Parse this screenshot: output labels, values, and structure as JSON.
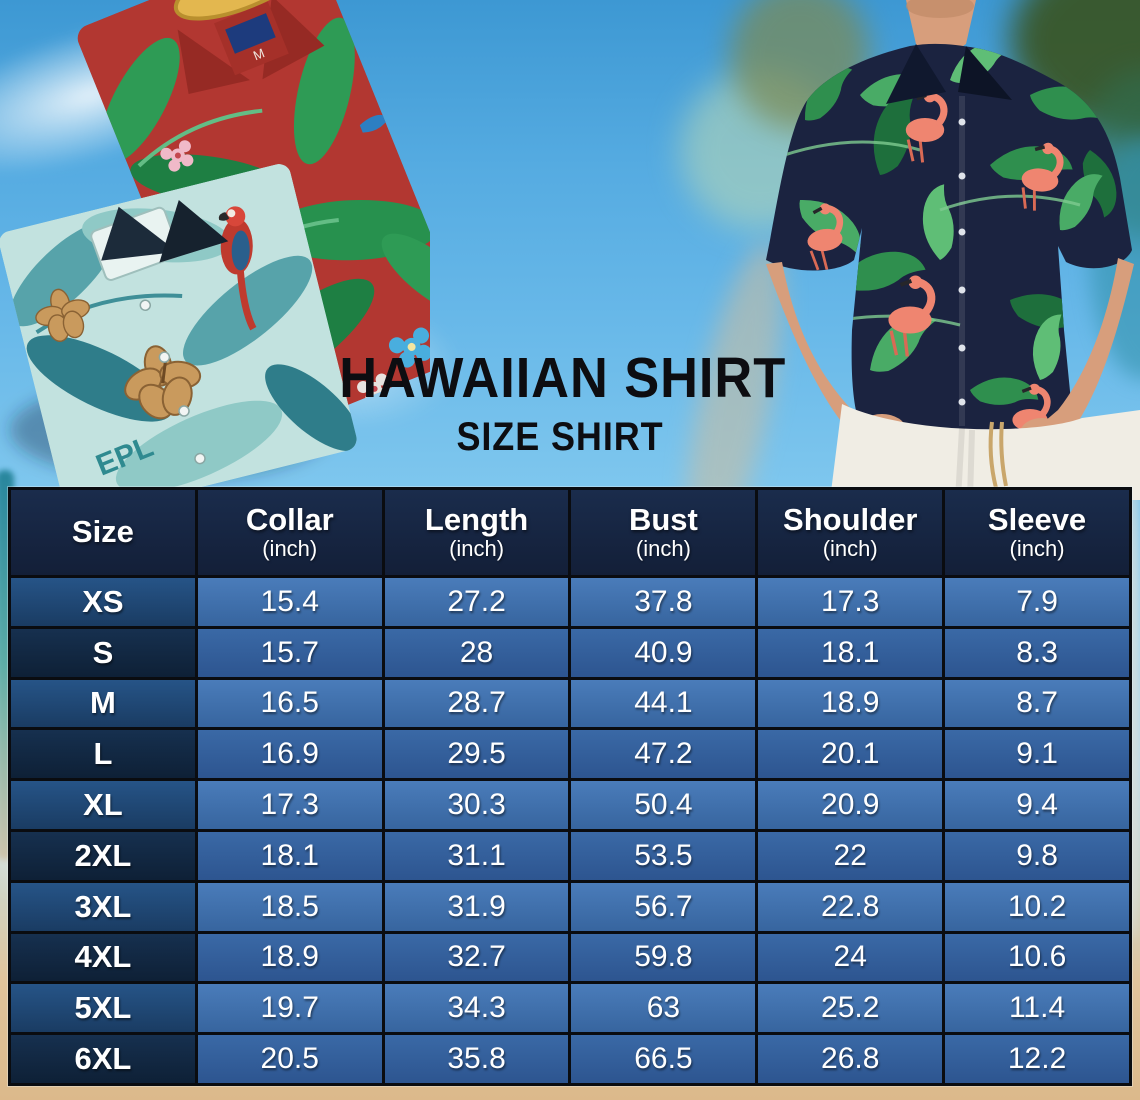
{
  "title": "HAWAIIAN SHIRT",
  "subtitle": "SIZE SHIRT",
  "photo_text": {
    "teal_shirt_text": "EPL",
    "red_shirt_size_tag": "M"
  },
  "table": {
    "columns": [
      {
        "label": "Size",
        "sub": ""
      },
      {
        "label": "Collar",
        "sub": "(inch)"
      },
      {
        "label": "Length",
        "sub": "(inch)"
      },
      {
        "label": "Bust",
        "sub": "(inch)"
      },
      {
        "label": "Shoulder",
        "sub": "(inch)"
      },
      {
        "label": "Sleeve",
        "sub": "(inch)"
      }
    ],
    "rows": [
      {
        "size": "XS",
        "values": [
          "15.4",
          "27.2",
          "37.8",
          "17.3",
          "7.9"
        ]
      },
      {
        "size": "S",
        "values": [
          "15.7",
          "28",
          "40.9",
          "18.1",
          "8.3"
        ]
      },
      {
        "size": "M",
        "values": [
          "16.5",
          "28.7",
          "44.1",
          "18.9",
          "8.7"
        ]
      },
      {
        "size": "L",
        "values": [
          "16.9",
          "29.5",
          "47.2",
          "20.1",
          "9.1"
        ]
      },
      {
        "size": "XL",
        "values": [
          "17.3",
          "30.3",
          "50.4",
          "20.9",
          "9.4"
        ]
      },
      {
        "size": "2XL",
        "values": [
          "18.1",
          "31.1",
          "53.5",
          "22",
          "9.8"
        ]
      },
      {
        "size": "3XL",
        "values": [
          "18.5",
          "31.9",
          "56.7",
          "22.8",
          "10.2"
        ]
      },
      {
        "size": "4XL",
        "values": [
          "18.9",
          "32.7",
          "59.8",
          "24",
          "10.6"
        ]
      },
      {
        "size": "5XL",
        "values": [
          "19.7",
          "34.3",
          "63",
          "25.2",
          "11.4"
        ]
      },
      {
        "size": "6XL",
        "values": [
          "20.5",
          "35.8",
          "66.5",
          "26.8",
          "12.2"
        ]
      }
    ]
  },
  "chart_data": {
    "type": "table",
    "title": "Hawaiian Shirt Size Chart",
    "columns": [
      "Size",
      "Collar (inch)",
      "Length (inch)",
      "Bust (inch)",
      "Shoulder (inch)",
      "Sleeve (inch)"
    ],
    "rows": [
      [
        "XS",
        15.4,
        27.2,
        37.8,
        17.3,
        7.9
      ],
      [
        "S",
        15.7,
        28,
        40.9,
        18.1,
        8.3
      ],
      [
        "M",
        16.5,
        28.7,
        44.1,
        18.9,
        8.7
      ],
      [
        "L",
        16.9,
        29.5,
        47.2,
        20.1,
        9.1
      ],
      [
        "XL",
        17.3,
        30.3,
        50.4,
        20.9,
        9.4
      ],
      [
        "2XL",
        18.1,
        31.1,
        53.5,
        22,
        9.8
      ],
      [
        "3XL",
        18.5,
        31.9,
        56.7,
        22.8,
        10.2
      ],
      [
        "4XL",
        18.9,
        32.7,
        59.8,
        24,
        10.6
      ],
      [
        "5XL",
        19.7,
        34.3,
        63,
        25.2,
        11.4
      ],
      [
        "6XL",
        20.5,
        35.8,
        66.5,
        26.8,
        12.2
      ]
    ]
  },
  "colors": {
    "header_bg": "#16243E",
    "row_bright_data": "#3B6CAE",
    "row_dark_data": "#2F5B9B",
    "size_col_bright": "#1E4876",
    "size_col_dark": "#122845",
    "table_border": "#0A0C10",
    "sky": "#55ABE1",
    "sand": "#DCB98B",
    "title_text": "#0D0D11"
  }
}
